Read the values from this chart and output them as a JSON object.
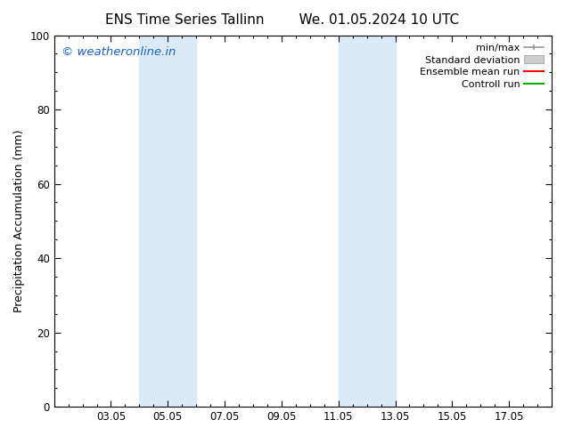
{
  "title_left": "ENS Time Series Tallinn",
  "title_right": "We. 01.05.2024 10 UTC",
  "ylabel": "Precipitation Accumulation (mm)",
  "ylim": [
    0,
    100
  ],
  "yticks": [
    0,
    20,
    40,
    60,
    80,
    100
  ],
  "xlabel": "",
  "xtick_labels": [
    "03.05",
    "05.05",
    "07.05",
    "09.05",
    "11.05",
    "13.05",
    "15.05",
    "17.05"
  ],
  "xtick_positions": [
    3,
    5,
    7,
    9,
    11,
    13,
    15,
    17
  ],
  "xlim": [
    1.0,
    18.5
  ],
  "shaded_regions": [
    {
      "xmin": 4.0,
      "xmax": 6.0
    },
    {
      "xmin": 11.0,
      "xmax": 13.0
    }
  ],
  "shade_color": "#daeaf7",
  "watermark_text": "© weatheronline.in",
  "watermark_color": "#1a5fcc",
  "watermark_fontsize": 9.5,
  "legend_labels": [
    "min/max",
    "Standard deviation",
    "Ensemble mean run",
    "Controll run"
  ],
  "legend_line_color": "#999999",
  "legend_std_color": "#cccccc",
  "legend_mean_color": "#ff0000",
  "legend_ctrl_color": "#00aa00",
  "background_color": "#ffffff",
  "title_fontsize": 11,
  "axis_label_fontsize": 9,
  "tick_fontsize": 8.5
}
